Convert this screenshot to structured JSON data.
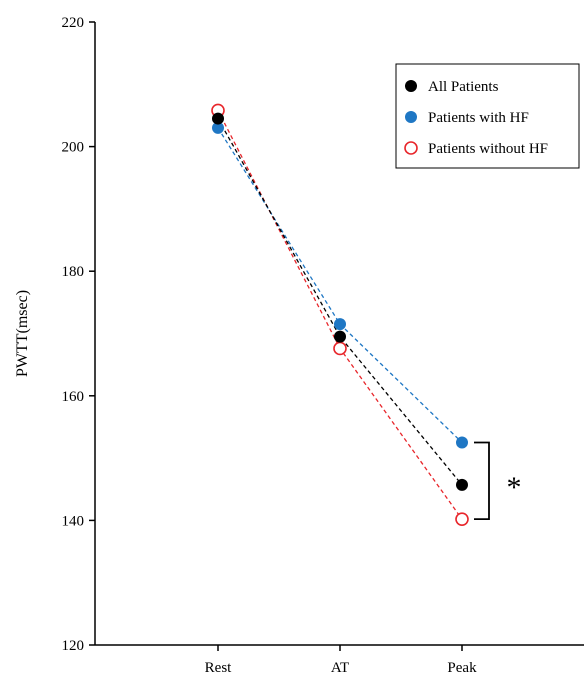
{
  "chart_data": {
    "type": "line",
    "title": "",
    "xlabel": "",
    "ylabel": "PWTT(msec)",
    "categories": [
      "Rest",
      "AT",
      "Peak"
    ],
    "ylim": [
      120,
      220
    ],
    "yticks": [
      120,
      140,
      160,
      180,
      200,
      220
    ],
    "series": [
      {
        "name": "All Patients",
        "values": [
          204.5,
          169.5,
          145.7
        ],
        "color": "#000000",
        "marker": "filled-circle",
        "line": "dashed"
      },
      {
        "name": "Patients with HF",
        "values": [
          203.0,
          171.5,
          152.5
        ],
        "color": "#1f77c4",
        "marker": "filled-circle",
        "line": "dashed"
      },
      {
        "name": "Patients without HF",
        "values": [
          205.8,
          167.6,
          140.2
        ],
        "color": "#e8262b",
        "marker": "open-circle",
        "line": "dashed"
      }
    ],
    "annotation": {
      "text": "*",
      "meaning": "significance bracket between Peak values of HF and without HF"
    },
    "legend_position": "top-right",
    "grid": false
  }
}
